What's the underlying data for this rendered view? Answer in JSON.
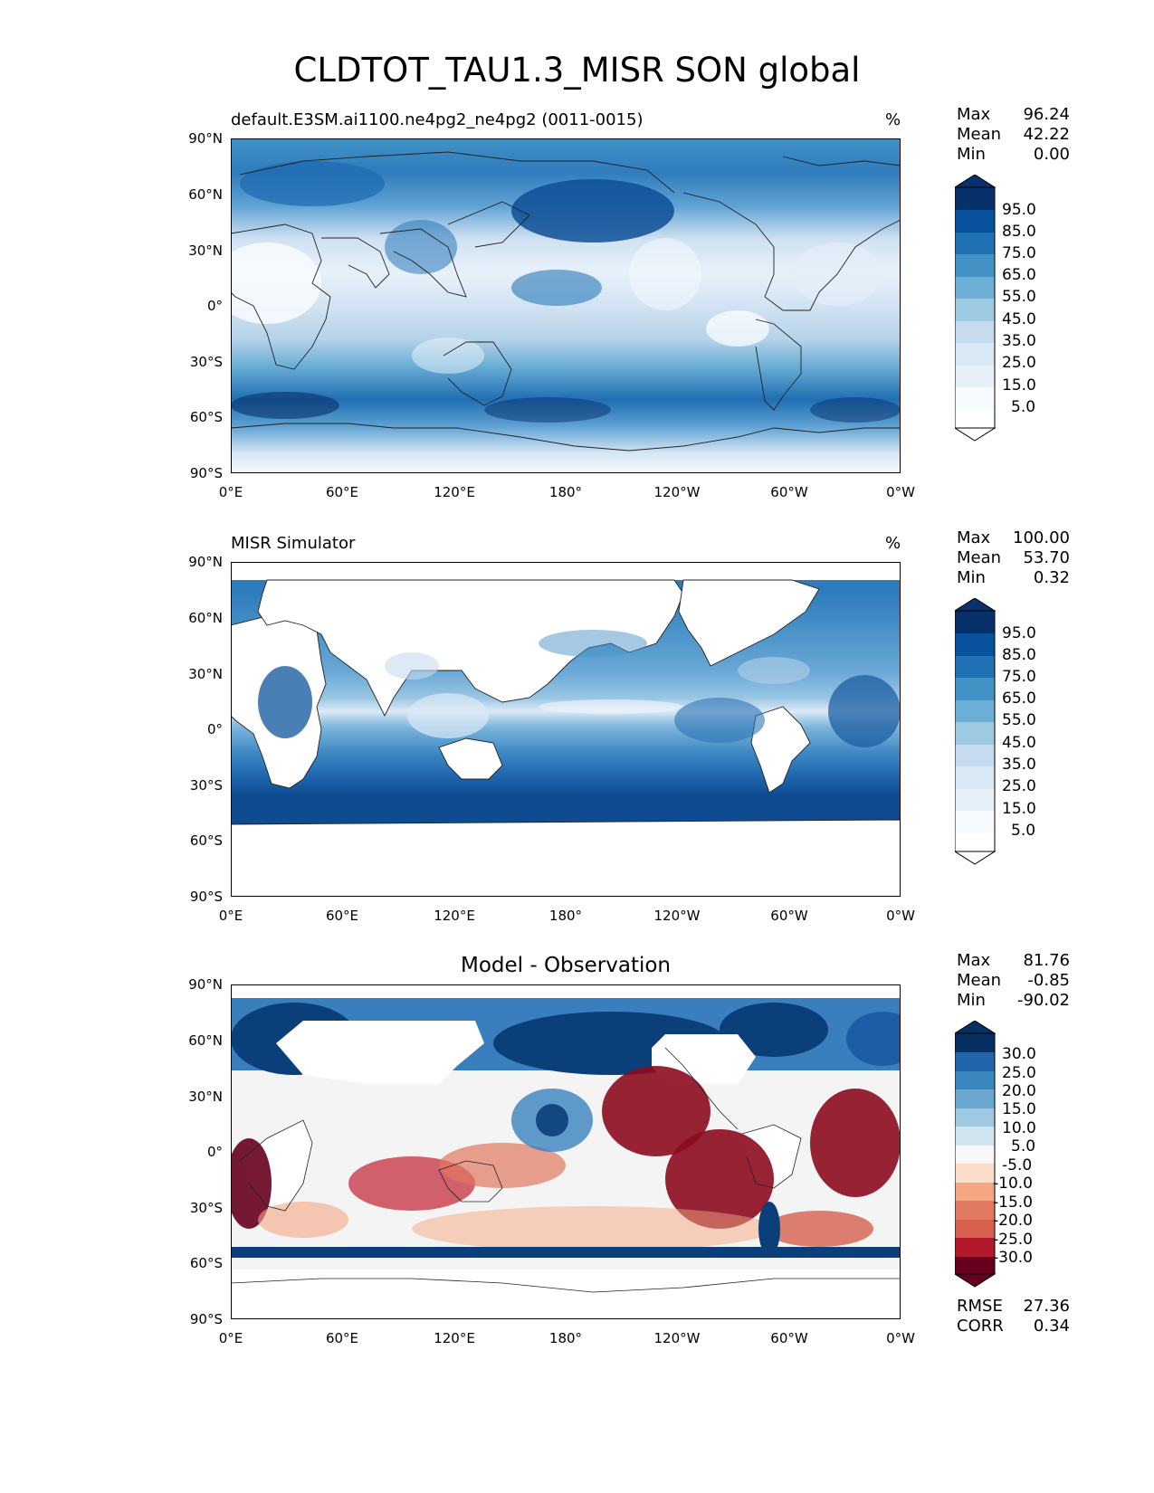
{
  "figure": {
    "title": "CLDTOT_TAU1.3_MISR SON global"
  },
  "axes": {
    "lat_ticks": [
      "90°N",
      "60°N",
      "30°N",
      "0°",
      "30°S",
      "60°S",
      "90°S"
    ],
    "lon_ticks": [
      "0°E",
      "60°E",
      "120°E",
      "180°",
      "120°W",
      "60°W",
      "0°W"
    ]
  },
  "panels": [
    {
      "id": "test",
      "title": "default.E3SM.ai1100.ne4pg2_ne4pg2 (0011-0015)",
      "units": "%",
      "stats": [
        {
          "label": "Max",
          "value": "96.24"
        },
        {
          "label": "Mean",
          "value": "42.22"
        },
        {
          "label": "Min",
          "value": "0.00"
        }
      ],
      "colorbar": {
        "labels": [
          "95.0",
          "85.0",
          "75.0",
          "65.0",
          "55.0",
          "45.0",
          "35.0",
          "25.0",
          "15.0",
          "5.0"
        ],
        "colors": [
          "#08306b",
          "#08519c",
          "#2171b5",
          "#4292c6",
          "#6baed6",
          "#9ecae1",
          "#c6dbef",
          "#dbe9f6",
          "#e6f0f9",
          "#f7fbff",
          "#ffffff"
        ]
      }
    },
    {
      "id": "reference",
      "title": "MISR Simulator",
      "units": "%",
      "stats": [
        {
          "label": "Max",
          "value": "100.00"
        },
        {
          "label": "Mean",
          "value": "53.70"
        },
        {
          "label": "Min",
          "value": "0.32"
        }
      ],
      "colorbar": {
        "labels": [
          "95.0",
          "85.0",
          "75.0",
          "65.0",
          "55.0",
          "45.0",
          "35.0",
          "25.0",
          "15.0",
          "5.0"
        ],
        "colors": [
          "#08306b",
          "#08519c",
          "#2171b5",
          "#4292c6",
          "#6baed6",
          "#9ecae1",
          "#c6dbef",
          "#dbe9f6",
          "#e6f0f9",
          "#f7fbff",
          "#ffffff"
        ]
      }
    },
    {
      "id": "diff",
      "title": "Model - Observation",
      "stats": [
        {
          "label": "Max",
          "value": "81.76"
        },
        {
          "label": "Mean",
          "value": "-0.85"
        },
        {
          "label": "Min",
          "value": "-90.02"
        }
      ],
      "extra_stats": [
        {
          "label": "RMSE",
          "value": "27.36"
        },
        {
          "label": "CORR",
          "value": "0.34"
        }
      ],
      "colorbar": {
        "labels": [
          "30.0",
          "25.0",
          "20.0",
          "15.0",
          "10.0",
          "5.0",
          "-5.0",
          "-10.0",
          "-15.0",
          "-20.0",
          "-25.0",
          "-30.0"
        ],
        "colors": [
          "#053061",
          "#2166ac",
          "#3a87c0",
          "#6aa8d0",
          "#9fc8e1",
          "#d1e5f0",
          "#f7f7f7",
          "#fbdcc8",
          "#f4a582",
          "#e17860",
          "#d6604d",
          "#b2182b",
          "#67001f"
        ]
      }
    }
  ]
}
